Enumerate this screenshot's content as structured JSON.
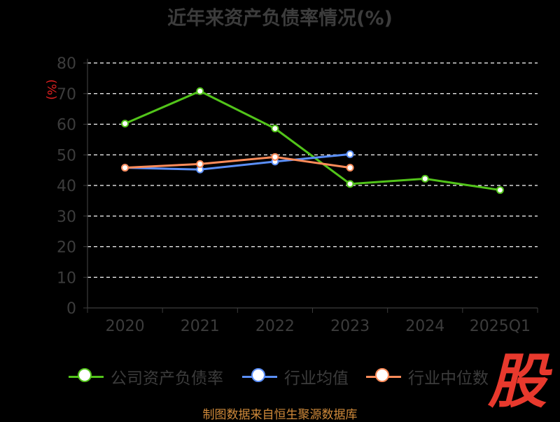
{
  "chart_data": {
    "type": "line",
    "title": "近年来资产负债率情况(%)",
    "ylabel": "(%)",
    "categories": [
      "2020",
      "2021",
      "2022",
      "2023",
      "2024",
      "2025Q1"
    ],
    "ylim": [
      0,
      80
    ],
    "yticks": [
      0,
      10,
      20,
      30,
      40,
      50,
      60,
      70,
      80
    ],
    "grid": true,
    "legend_position": "bottom",
    "series": [
      {
        "name": "公司资产负债率",
        "color": "#52c41a",
        "values": [
          60.2,
          70.8,
          58.6,
          40.5,
          42.2,
          38.5
        ]
      },
      {
        "name": "行业均值",
        "color": "#5b8ff9",
        "values": [
          45.8,
          45.2,
          47.8,
          50.2,
          null,
          null
        ]
      },
      {
        "name": "行业中位数",
        "color": "#ff8c5a",
        "values": [
          45.8,
          47.0,
          49.3,
          45.8,
          null,
          null
        ]
      }
    ]
  },
  "legend": {
    "items": [
      "公司资产负债率",
      "行业均值",
      "行业中位数"
    ]
  },
  "footer": {
    "source": "制图数据来自恒生聚源数据库"
  },
  "logo": {
    "text": "股"
  },
  "colors": {
    "background": "#000000",
    "axis": "#3c3c3c",
    "grid": "#ffffff",
    "source": "#d08a3a",
    "logo": "#e8392d"
  }
}
